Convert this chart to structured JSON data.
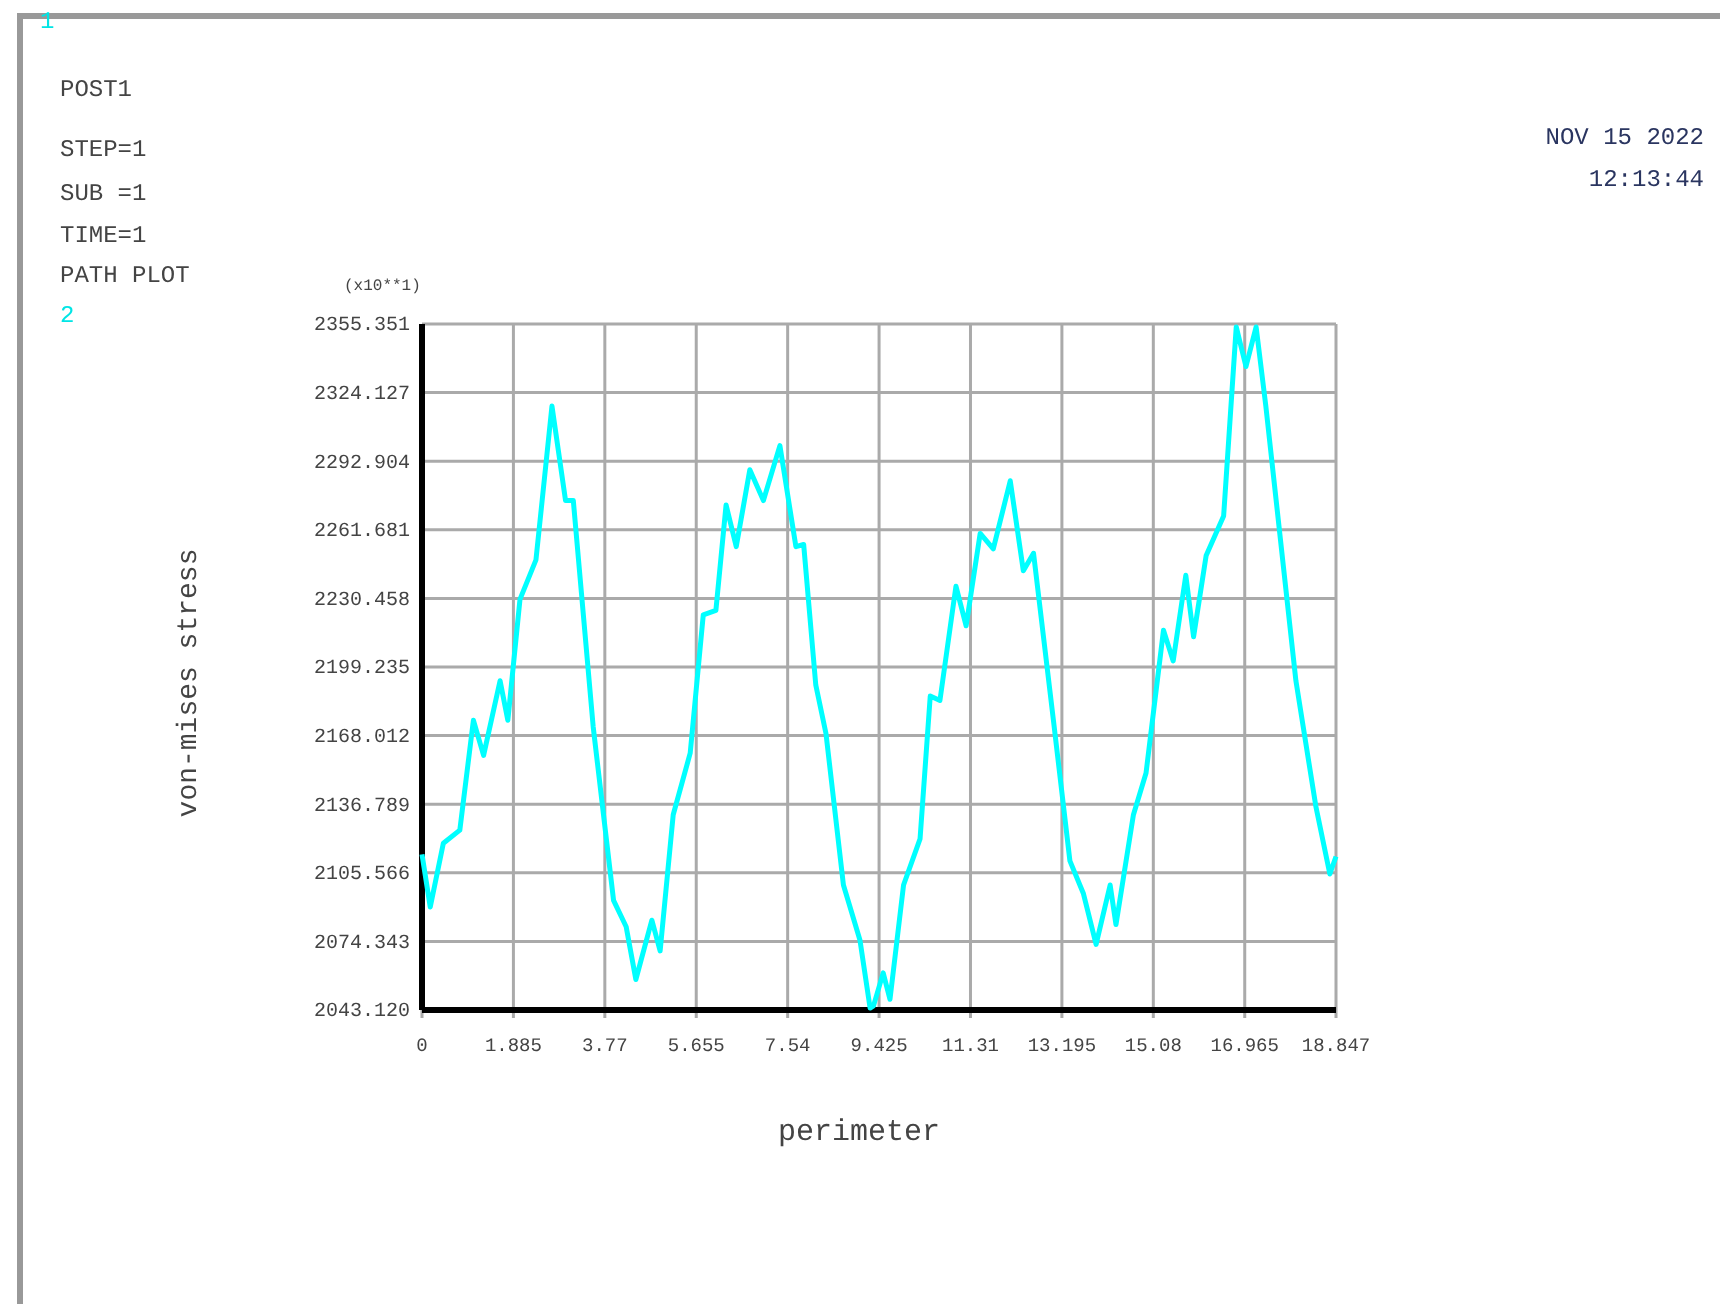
{
  "chart_data": {
    "type": "line",
    "xlabel": "perimeter",
    "ylabel": "von-mises stress",
    "annotations": [
      "1",
      "POST1",
      "STEP=1",
      "SUB =1",
      "TIME=1",
      "PATH PLOT",
      "2",
      "NOV 15 2022",
      "12:13:44",
      "(x10**1)"
    ],
    "series": [
      {
        "color": "#00ffff",
        "x": [
          0,
          0.17,
          0.44,
          0.78,
          1.06,
          1.27,
          1.61,
          1.77,
          2.02,
          2.35,
          2.68,
          2.96,
          3.12,
          3.53,
          3.95,
          4.21,
          4.41,
          4.74,
          4.91,
          5.18,
          5.53,
          5.8,
          6.06,
          6.27,
          6.48,
          6.76,
          7.04,
          7.38,
          7.71,
          7.87,
          8.12,
          8.33,
          8.69,
          9.03,
          9.24,
          9.31,
          9.51,
          9.65,
          9.93,
          10.27,
          10.48,
          10.68,
          11.01,
          11.22,
          11.51,
          11.78,
          12.13,
          12.4,
          12.61,
          13.02,
          13.36,
          13.64,
          13.9,
          14.19,
          14.31,
          14.67,
          14.93,
          15.29,
          15.49,
          15.75,
          15.91,
          16.17,
          16.53,
          16.79,
          16.99,
          17.2,
          17.4,
          18.02,
          18.43,
          18.72,
          18.847
        ],
        "values": [
          2114,
          2090,
          2119,
          2125,
          2175,
          2159,
          2193,
          2175,
          2230,
          2248,
          2318,
          2275,
          2275,
          2172,
          2093,
          2081,
          2057,
          2084,
          2070,
          2132,
          2160,
          2223,
          2225,
          2273,
          2254,
          2289,
          2275,
          2300,
          2254,
          2255,
          2191,
          2169,
          2100,
          2075,
          2044,
          2045,
          2060,
          2048,
          2100,
          2121,
          2186,
          2184,
          2236,
          2218,
          2260,
          2253,
          2284,
          2243,
          2251,
          2175,
          2111,
          2096,
          2073,
          2100,
          2082,
          2132,
          2151,
          2216,
          2202,
          2241,
          2213,
          2250,
          2268,
          2354,
          2336,
          2354,
          2318,
          2193,
          2136,
          2105,
          2113
        ]
      }
    ],
    "xlim": [
      0,
      18.847
    ],
    "xticks": [
      0,
      1.885,
      3.77,
      5.655,
      7.54,
      9.425,
      11.31,
      13.195,
      15.08,
      16.965,
      18.847
    ],
    "ylim": [
      2043.12,
      2355.351
    ],
    "yticks": [
      {
        "value": 2043.12,
        "label": "2043.120"
      },
      2074.343,
      2105.566,
      2136.789,
      2168.012,
      2199.235,
      2230.458,
      2261.681,
      2292.904,
      2324.127,
      2355.351
    ],
    "grid": true,
    "line_style": "solid",
    "marker": "none"
  }
}
